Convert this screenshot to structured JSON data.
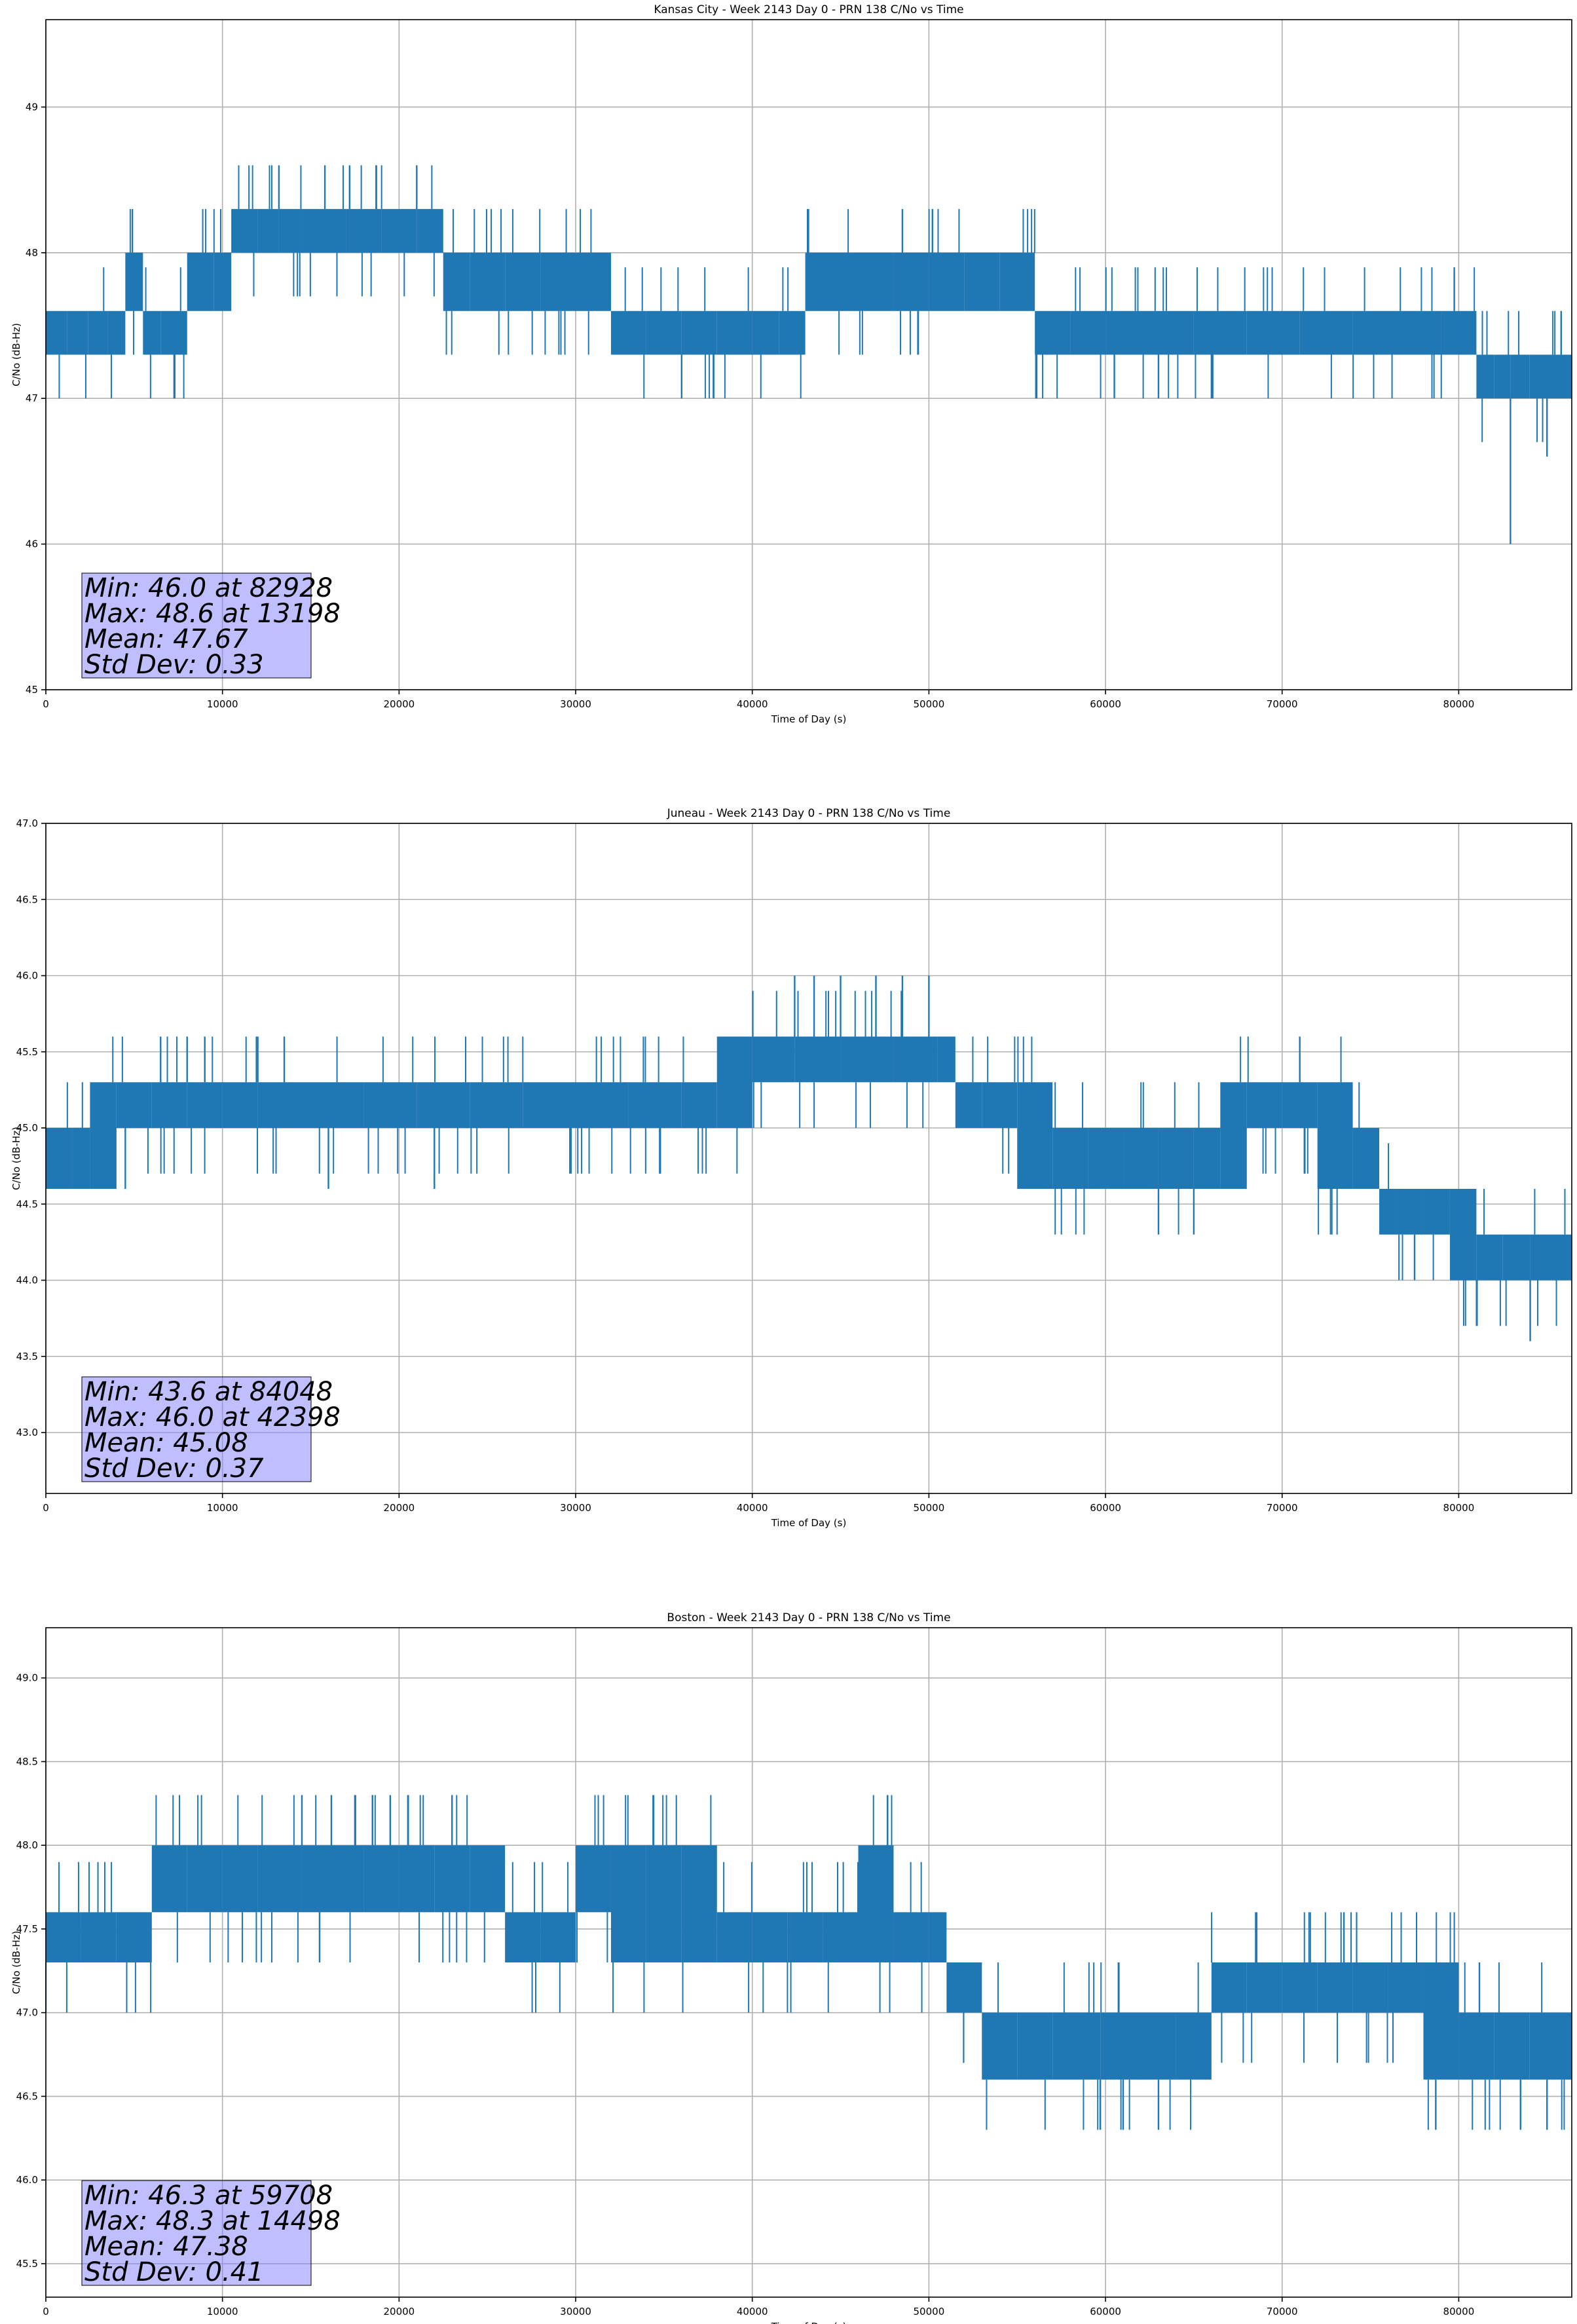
{
  "chart_data": [
    {
      "type": "line",
      "title": "Kansas City - Week 2143 Day 0 - PRN 138 C/No vs Time",
      "xlabel": "Time of Day (s)",
      "ylabel": "C/No (dB-Hz)",
      "xlim": [
        0,
        86400
      ],
      "ylim": [
        45.0,
        49.6
      ],
      "grid": true,
      "line_color": "#1f77b4",
      "xticks": [
        0,
        10000,
        20000,
        30000,
        40000,
        50000,
        60000,
        70000,
        80000
      ],
      "yticks": [
        45,
        46,
        47,
        48,
        49
      ],
      "ytick_decimals": 0,
      "step": 0.3,
      "series": [
        {
          "x": [
            0,
            1200,
            2400,
            3500,
            4500,
            5500,
            6500,
            8000,
            9500,
            10500,
            12000,
            13198,
            14500,
            17000,
            19000,
            21000,
            22500,
            24000,
            26000,
            28000,
            30000,
            32000,
            34000,
            36000,
            38000,
            40000,
            41500,
            43000,
            46000,
            48000,
            50000,
            52000,
            54000,
            56000,
            58000,
            60000,
            62000,
            65000,
            68000,
            71000,
            74000,
            77000,
            79000,
            81000,
            82000,
            82928,
            84000,
            86400
          ],
          "values": [
            47.6,
            47.6,
            47.6,
            47.6,
            48.0,
            47.6,
            47.6,
            47.9,
            47.9,
            48.1,
            48.2,
            48.3,
            48.2,
            48.2,
            48.2,
            48.2,
            48.0,
            47.8,
            47.8,
            47.7,
            47.7,
            47.4,
            47.3,
            47.3,
            47.3,
            47.3,
            47.6,
            47.8,
            47.8,
            47.8,
            47.8,
            47.7,
            47.7,
            47.6,
            47.4,
            47.3,
            47.3,
            47.4,
            47.4,
            47.4,
            47.4,
            47.4,
            47.3,
            47.2,
            47.1,
            47.0,
            47.1,
            47.1
          ],
          "band_low": [
            47.3,
            47.3,
            47.3,
            47.3,
            47.6,
            47.3,
            47.3,
            47.6,
            47.6,
            48.0,
            48.0,
            48.0,
            48.0,
            48.0,
            48.0,
            48.0,
            47.6,
            47.6,
            47.6,
            47.6,
            47.6,
            47.3,
            47.3,
            47.3,
            47.3,
            47.3,
            47.3,
            47.6,
            47.6,
            47.6,
            47.6,
            47.6,
            47.6,
            47.3,
            47.3,
            47.3,
            47.3,
            47.3,
            47.3,
            47.3,
            47.3,
            47.3,
            47.3,
            47.0,
            47.0,
            47.0,
            47.0,
            47.0
          ],
          "band_high": [
            47.6,
            47.6,
            47.6,
            47.6,
            48.0,
            47.6,
            47.6,
            48.0,
            48.0,
            48.3,
            48.3,
            48.3,
            48.3,
            48.3,
            48.3,
            48.3,
            48.0,
            48.0,
            48.0,
            48.0,
            48.0,
            47.6,
            47.6,
            47.6,
            47.6,
            47.6,
            47.6,
            48.0,
            48.0,
            48.0,
            48.0,
            48.0,
            48.0,
            47.6,
            47.6,
            47.6,
            47.6,
            47.6,
            47.6,
            47.6,
            47.6,
            47.6,
            47.6,
            47.3,
            47.3,
            47.3,
            47.3,
            47.3
          ],
          "spikes": [
            [
              4900,
              48.3
            ],
            [
              13198,
              48.6
            ],
            [
              15800,
              48.6
            ],
            [
              17200,
              48.6
            ],
            [
              18700,
              48.6
            ],
            [
              21000,
              48.6
            ],
            [
              48500,
              48.3
            ],
            [
              50200,
              48.3
            ],
            [
              36000,
              47.0
            ],
            [
              37800,
              47.0
            ],
            [
              60500,
              47.0
            ],
            [
              63000,
              47.0
            ],
            [
              66000,
              47.0
            ],
            [
              82928,
              46.0
            ],
            [
              85000,
              46.6
            ],
            [
              85800,
              47.6
            ]
          ]
        }
      ],
      "stats": [
        "Min: 46.0 at 82928",
        "Max: 48.6 at 13198",
        "Mean: 47.67",
        "Std Dev: 0.33"
      ],
      "stats_box_color": "#8080ff"
    },
    {
      "type": "line",
      "title": "Juneau - Week 2143 Day 0 - PRN 138 C/No vs Time",
      "xlabel": "Time of Day (s)",
      "ylabel": "C/No (dB-Hz)",
      "xlim": [
        0,
        86400
      ],
      "ylim": [
        42.6,
        47.0
      ],
      "grid": true,
      "line_color": "#1f77b4",
      "xticks": [
        0,
        10000,
        20000,
        30000,
        40000,
        50000,
        60000,
        70000,
        80000
      ],
      "yticks": [
        43.0,
        43.5,
        44.0,
        44.5,
        45.0,
        45.5,
        46.0,
        46.5,
        47.0
      ],
      "ytick_decimals": 1,
      "step": 0.3,
      "series": [
        {
          "x": [
            0,
            1500,
            2500,
            4000,
            6000,
            8000,
            10000,
            12000,
            15000,
            18000,
            21000,
            24000,
            27000,
            30000,
            33000,
            36000,
            38000,
            40000,
            42398,
            45000,
            48000,
            50500,
            51500,
            53000,
            55000,
            57000,
            59000,
            61000,
            63000,
            65000,
            66500,
            68000,
            70000,
            72000,
            74000,
            75500,
            76500,
            78000,
            79500,
            81000,
            82500,
            84048,
            86400
          ],
          "values": [
            44.8,
            44.8,
            45.0,
            45.1,
            45.2,
            45.2,
            45.2,
            45.2,
            45.2,
            45.2,
            45.2,
            45.2,
            45.2,
            45.2,
            45.2,
            45.3,
            45.4,
            45.5,
            45.5,
            45.5,
            45.5,
            45.5,
            45.2,
            45.2,
            45.1,
            44.9,
            44.8,
            44.8,
            44.8,
            44.8,
            45.0,
            45.1,
            45.2,
            45.1,
            45.0,
            44.6,
            44.5,
            44.4,
            44.3,
            44.2,
            44.2,
            44.1,
            44.2
          ],
          "band_low": [
            44.6,
            44.6,
            44.6,
            45.0,
            45.0,
            45.0,
            45.0,
            45.0,
            45.0,
            45.0,
            45.0,
            45.0,
            45.0,
            45.0,
            45.0,
            45.0,
            45.0,
            45.3,
            45.3,
            45.3,
            45.3,
            45.3,
            45.0,
            45.0,
            44.6,
            44.6,
            44.6,
            44.6,
            44.6,
            44.6,
            44.6,
            45.0,
            45.0,
            44.6,
            44.6,
            44.3,
            44.3,
            44.3,
            44.0,
            44.0,
            44.0,
            44.0,
            44.0
          ],
          "band_high": [
            45.0,
            45.0,
            45.3,
            45.3,
            45.3,
            45.3,
            45.3,
            45.3,
            45.3,
            45.3,
            45.3,
            45.3,
            45.3,
            45.3,
            45.3,
            45.3,
            45.6,
            45.6,
            45.6,
            45.6,
            45.6,
            45.6,
            45.3,
            45.3,
            45.3,
            45.0,
            45.0,
            45.0,
            45.0,
            45.0,
            45.3,
            45.3,
            45.3,
            45.3,
            45.0,
            44.6,
            44.6,
            44.6,
            44.6,
            44.3,
            44.3,
            44.3,
            44.3
          ],
          "spikes": [
            [
              6500,
              45.6
            ],
            [
              8000,
              45.6
            ],
            [
              9000,
              45.6
            ],
            [
              12000,
              45.6
            ],
            [
              13500,
              45.6
            ],
            [
              4500,
              44.6
            ],
            [
              16000,
              44.6
            ],
            [
              22000,
              44.6
            ],
            [
              42398,
              46.0
            ],
            [
              43500,
              46.0
            ],
            [
              45000,
              46.0
            ],
            [
              47000,
              46.0
            ],
            [
              48500,
              46.0
            ],
            [
              50000,
              46.0
            ],
            [
              63000,
              44.3
            ],
            [
              65000,
              44.3
            ],
            [
              71000,
              45.6
            ],
            [
              77500,
              44.0
            ],
            [
              84048,
              43.6
            ],
            [
              85800,
              44.0
            ]
          ]
        }
      ],
      "stats": [
        "Min: 43.6 at 84048",
        "Max: 46.0 at 42398",
        "Mean: 45.08",
        "Std Dev: 0.37"
      ],
      "stats_box_color": "#8080ff"
    },
    {
      "type": "line",
      "title": "Boston - Week 2143 Day 0 - PRN 138 C/No vs Time",
      "xlabel": "Time of Day (s)",
      "ylabel": "C/No (dB-Hz)",
      "xlim": [
        0,
        86400
      ],
      "ylim": [
        45.3,
        49.3
      ],
      "grid": true,
      "line_color": "#1f77b4",
      "xticks": [
        0,
        10000,
        20000,
        30000,
        40000,
        50000,
        60000,
        70000,
        80000
      ],
      "yticks": [
        45.5,
        46.0,
        46.5,
        47.0,
        47.5,
        48.0,
        48.5,
        49.0
      ],
      "ytick_decimals": 1,
      "step": 0.3,
      "series": [
        {
          "x": [
            0,
            2000,
            4000,
            6000,
            8000,
            10000,
            12000,
            14498,
            16000,
            18000,
            20000,
            22000,
            24000,
            26000,
            28000,
            30000,
            32000,
            34000,
            36000,
            38000,
            40000,
            42000,
            44000,
            46000,
            48000,
            50000,
            51000,
            53000,
            55000,
            57000,
            59708,
            62000,
            64000,
            66000,
            68000,
            70000,
            72000,
            74000,
            76000,
            78000,
            80000,
            82000,
            84000,
            86400
          ],
          "values": [
            47.4,
            47.4,
            47.5,
            47.7,
            47.8,
            47.8,
            47.8,
            47.8,
            47.8,
            47.9,
            47.9,
            47.8,
            47.8,
            47.6,
            47.6,
            47.7,
            47.6,
            47.6,
            47.6,
            47.5,
            47.6,
            47.6,
            47.5,
            47.6,
            47.5,
            47.5,
            47.1,
            46.8,
            46.8,
            46.8,
            46.8,
            46.8,
            46.8,
            47.1,
            47.1,
            47.1,
            47.1,
            47.1,
            47.1,
            47.0,
            46.8,
            46.8,
            46.8,
            46.8
          ],
          "band_low": [
            47.3,
            47.3,
            47.3,
            47.6,
            47.6,
            47.6,
            47.6,
            47.6,
            47.6,
            47.6,
            47.6,
            47.6,
            47.6,
            47.3,
            47.3,
            47.6,
            47.3,
            47.3,
            47.3,
            47.3,
            47.3,
            47.3,
            47.3,
            47.3,
            47.3,
            47.3,
            47.0,
            46.6,
            46.6,
            46.6,
            46.6,
            46.6,
            46.6,
            47.0,
            47.0,
            47.0,
            47.0,
            47.0,
            47.0,
            46.6,
            46.6,
            46.6,
            46.6,
            46.6
          ],
          "band_high": [
            47.6,
            47.6,
            47.6,
            48.0,
            48.0,
            48.0,
            48.0,
            48.0,
            48.0,
            48.0,
            48.0,
            48.0,
            48.0,
            47.6,
            47.6,
            48.0,
            48.0,
            48.0,
            48.0,
            47.6,
            47.6,
            47.6,
            47.6,
            48.0,
            47.6,
            47.6,
            47.3,
            47.0,
            47.0,
            47.0,
            47.0,
            47.0,
            47.0,
            47.3,
            47.3,
            47.3,
            47.3,
            47.3,
            47.3,
            47.3,
            47.0,
            47.0,
            47.0,
            47.0
          ],
          "spikes": [
            [
              14498,
              48.3
            ],
            [
              17500,
              48.3
            ],
            [
              18500,
              48.3
            ],
            [
              19500,
              48.3
            ],
            [
              20500,
              48.3
            ],
            [
              23000,
              48.3
            ],
            [
              15500,
              47.3
            ],
            [
              59708,
              46.3
            ],
            [
              61000,
              46.3
            ],
            [
              63000,
              46.3
            ],
            [
              73500,
              47.6
            ],
            [
              78700,
              46.3
            ],
            [
              83500,
              46.3
            ],
            [
              85000,
              46.3
            ]
          ]
        }
      ],
      "stats": [
        "Min: 46.3 at 59708",
        "Max: 48.3 at 14498",
        "Mean: 47.38",
        "Std Dev: 0.41"
      ],
      "stats_box_color": "#8080ff"
    }
  ]
}
